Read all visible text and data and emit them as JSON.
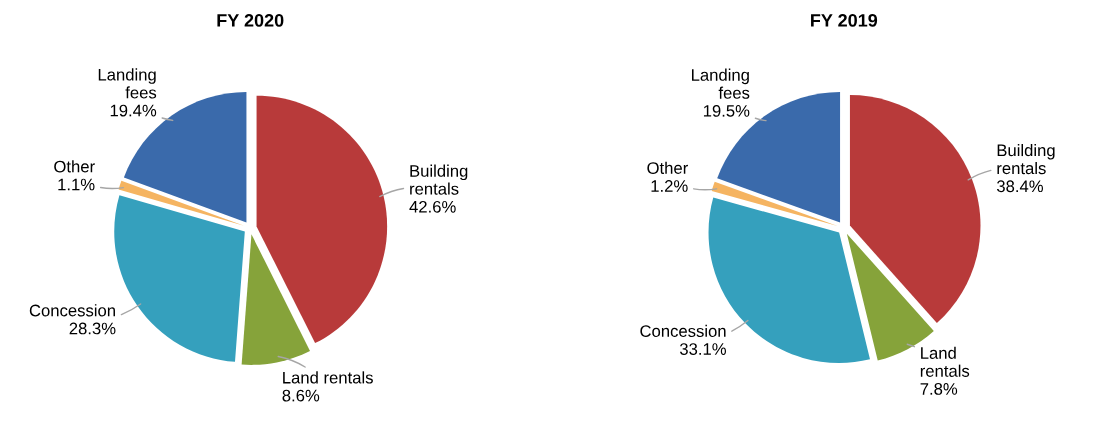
{
  "chart_data": [
    {
      "type": "pie",
      "title": "FY 2020",
      "categories": [
        "Building\nrentals",
        "Land rentals",
        "Concession",
        "Other",
        "Landing\nfees"
      ],
      "values": [
        42.6,
        8.6,
        28.3,
        1.1,
        19.4
      ],
      "value_labels": [
        "42.6%",
        "8.6%",
        "28.3%",
        "1.1%",
        "19.4%"
      ],
      "colors": [
        "#b83a3a",
        "#86a33a",
        "#35a0bd",
        "#f5b461",
        "#3a6aab"
      ]
    },
    {
      "type": "pie",
      "title": "FY 2019",
      "categories": [
        "Building\nrentals",
        "Land\nrentals",
        "Concession",
        "Other",
        "Landing\nfees"
      ],
      "values": [
        38.4,
        7.8,
        33.1,
        1.2,
        19.5
      ],
      "value_labels": [
        "38.4%",
        "7.8%",
        "33.1%",
        "1.2%",
        "19.5%"
      ],
      "colors": [
        "#b83a3a",
        "#86a33a",
        "#35a0bd",
        "#f5b461",
        "#3a6aab"
      ]
    }
  ]
}
